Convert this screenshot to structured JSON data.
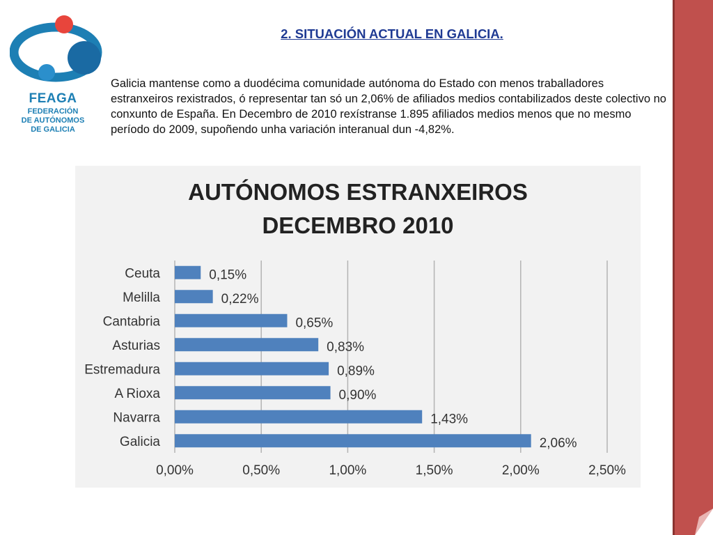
{
  "logo": {
    "name": "FEAGA",
    "sub_line_1": "FEDERACIÓN",
    "sub_line_2": "DE AUTÓNOMOS",
    "sub_line_3": "DE GALICIA"
  },
  "slide": {
    "title": "2. SITUACIÓN ACTUAL EN GALICIA.",
    "intro": "Galicia mantense como a duodécima comunidade autónoma do Estado con menos traballadores  estranxeiros rexistrados, ó representar tan só un 2,06% de afiliados medios contabilizados deste colectivo no conxunto de España. En Decembro  de 2010 rexístranse 1.895 afiliados medios menos que no mesmo período do 2009, supoñendo unha variación interanual dun -4,82%."
  },
  "chart_data": {
    "type": "bar",
    "orientation": "horizontal",
    "title_line_1": "AUTÓNOMOS ESTRANXEIROS",
    "title_line_2": "DECEMBRO 2010",
    "categories": [
      "Ceuta",
      "Melilla",
      "Cantabria",
      "Asturias",
      "Estremadura",
      "A Rioxa",
      "Navarra",
      "Galicia"
    ],
    "values": [
      0.15,
      0.22,
      0.65,
      0.83,
      0.89,
      0.9,
      1.43,
      2.06
    ],
    "data_labels": [
      "0,15%",
      "0,22%",
      "0,65%",
      "0,83%",
      "0,89%",
      "0,90%",
      "1,43%",
      "2,06%"
    ],
    "xlim": [
      0,
      2.5
    ],
    "x_ticks": [
      0,
      0.5,
      1.0,
      1.5,
      2.0,
      2.5
    ],
    "x_tick_labels": [
      "0,00%",
      "0,50%",
      "1,00%",
      "1,50%",
      "2,00%",
      "2,50%"
    ],
    "grid": "vertical",
    "legend": "none",
    "bar_color": "#4f81bd"
  },
  "colors": {
    "title_blue": "#1f3a93",
    "logo_blue": "#1d7fb4",
    "logo_red": "#e8453c",
    "ribbon_red": "#c0504d"
  }
}
